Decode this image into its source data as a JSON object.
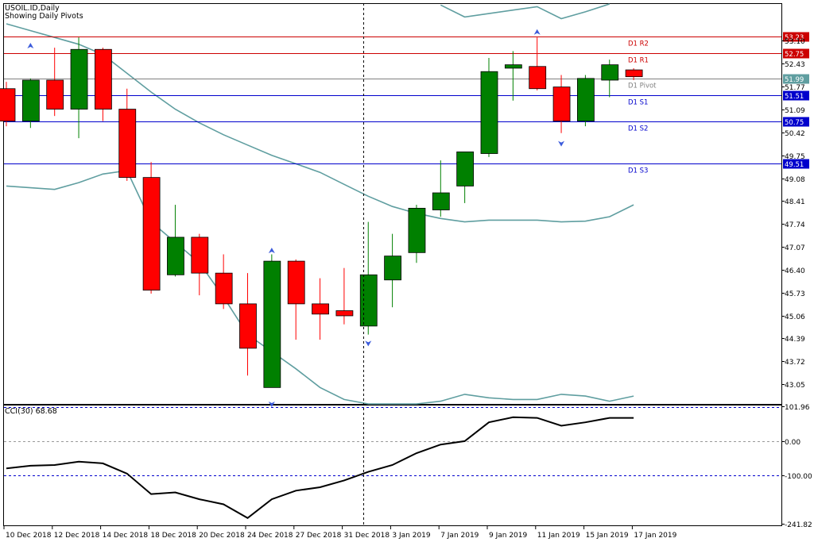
{
  "header": {
    "symbol": "USOIL.ID,Daily",
    "pivot_note": "Showing Daily Pivots"
  },
  "indicator": {
    "label": "CCI(30) 68.68"
  },
  "colors": {
    "bull": "#008000",
    "bear": "#ff0000",
    "ma": "#5f9ea0",
    "pivot_r": "#cc0000",
    "pivot_s": "#0000cc",
    "pivot_p": "#808080",
    "cci": "#000000",
    "level": "#0000cc"
  },
  "chart_data": {
    "type": "candlestick",
    "y_axis_ticks": [
      "53.10",
      "52.43",
      "51.77",
      "51.09",
      "50.42",
      "49.75",
      "49.08",
      "48.41",
      "47.74",
      "47.07",
      "46.40",
      "45.73",
      "45.06",
      "44.39",
      "43.72",
      "43.05"
    ],
    "ylim": [
      42.47,
      54.18
    ],
    "x_axis_ticks": [
      "10 Dec 2018",
      "12 Dec 2018",
      "14 Dec 2018",
      "18 Dec 2018",
      "20 Dec 2018",
      "24 Dec 2018",
      "27 Dec 2018",
      "31 Dec 2018",
      "3 Jan 2019",
      "7 Jan 2019",
      "9 Jan 2019",
      "11 Jan 2019",
      "15 Jan 2019",
      "17 Jan 2019"
    ],
    "candles": [
      {
        "o": 51.7,
        "h": 51.9,
        "l": 50.6,
        "c": 50.75
      },
      {
        "o": 50.75,
        "h": 52.0,
        "l": 50.55,
        "c": 51.95
      },
      {
        "o": 51.95,
        "h": 52.9,
        "l": 50.9,
        "c": 51.1
      },
      {
        "o": 51.1,
        "h": 53.2,
        "l": 50.25,
        "c": 52.85
      },
      {
        "o": 52.85,
        "h": 52.9,
        "l": 50.75,
        "c": 51.1
      },
      {
        "o": 51.1,
        "h": 51.7,
        "l": 49.0,
        "c": 49.1
      },
      {
        "o": 49.1,
        "h": 49.55,
        "l": 45.7,
        "c": 45.8
      },
      {
        "o": 46.25,
        "h": 48.3,
        "l": 46.2,
        "c": 47.35
      },
      {
        "o": 47.35,
        "h": 47.45,
        "l": 45.65,
        "c": 46.3
      },
      {
        "o": 46.3,
        "h": 46.85,
        "l": 45.25,
        "c": 45.4
      },
      {
        "o": 45.4,
        "h": 46.3,
        "l": 43.3,
        "c": 44.1
      },
      {
        "o": 42.95,
        "h": 46.85,
        "l": 42.95,
        "c": 46.65
      },
      {
        "o": 46.65,
        "h": 46.7,
        "l": 44.35,
        "c": 45.4
      },
      {
        "o": 45.4,
        "h": 46.15,
        "l": 44.35,
        "c": 45.1
      },
      {
        "o": 45.2,
        "h": 46.45,
        "l": 44.8,
        "c": 45.05
      },
      {
        "o": 44.75,
        "h": 47.8,
        "l": 44.5,
        "c": 46.25
      },
      {
        "o": 46.1,
        "h": 47.45,
        "l": 45.3,
        "c": 46.8
      },
      {
        "o": 46.9,
        "h": 48.3,
        "l": 46.6,
        "c": 48.2
      },
      {
        "o": 48.15,
        "h": 49.6,
        "l": 47.95,
        "c": 48.65
      },
      {
        "o": 48.85,
        "h": 49.85,
        "l": 48.35,
        "c": 49.85
      },
      {
        "o": 49.8,
        "h": 52.6,
        "l": 49.7,
        "c": 52.2
      },
      {
        "o": 52.3,
        "h": 52.8,
        "l": 51.35,
        "c": 52.4
      },
      {
        "o": 52.35,
        "h": 53.2,
        "l": 51.65,
        "c": 51.7
      },
      {
        "o": 51.75,
        "h": 52.1,
        "l": 50.4,
        "c": 50.75
      },
      {
        "o": 50.75,
        "h": 52.1,
        "l": 50.6,
        "c": 52.0
      },
      {
        "o": 51.95,
        "h": 52.55,
        "l": 51.45,
        "c": 52.4
      },
      {
        "o": 52.25,
        "h": 52.3,
        "l": 51.95,
        "c": 52.05
      }
    ],
    "envelope_upper": [
      {
        "i": 18,
        "v": 54.15
      },
      {
        "i": 19,
        "v": 53.8
      },
      {
        "i": 20,
        "v": 53.9
      },
      {
        "i": 21,
        "v": 54.0
      },
      {
        "i": 22,
        "v": 54.1
      },
      {
        "i": 23,
        "v": 53.75
      },
      {
        "i": 24,
        "v": 53.95
      },
      {
        "i": 25,
        "v": 54.3
      }
    ],
    "envelope_middle": [
      {
        "i": 0,
        "v": 53.6
      },
      {
        "i": 1,
        "v": 53.4
      },
      {
        "i": 2,
        "v": 53.2
      },
      {
        "i": 3,
        "v": 53.0
      },
      {
        "i": 4,
        "v": 52.7
      },
      {
        "i": 5,
        "v": 52.15
      },
      {
        "i": 6,
        "v": 51.6
      },
      {
        "i": 7,
        "v": 51.1
      },
      {
        "i": 8,
        "v": 50.7
      },
      {
        "i": 9,
        "v": 50.35
      },
      {
        "i": 10,
        "v": 50.05
      },
      {
        "i": 11,
        "v": 49.75
      },
      {
        "i": 12,
        "v": 49.5
      },
      {
        "i": 13,
        "v": 49.25
      },
      {
        "i": 14,
        "v": 48.9
      },
      {
        "i": 15,
        "v": 48.55
      },
      {
        "i": 16,
        "v": 48.25
      },
      {
        "i": 17,
        "v": 48.05
      },
      {
        "i": 18,
        "v": 47.9
      },
      {
        "i": 19,
        "v": 47.8
      },
      {
        "i": 20,
        "v": 47.85
      },
      {
        "i": 21,
        "v": 47.85
      },
      {
        "i": 22,
        "v": 47.85
      },
      {
        "i": 23,
        "v": 47.8
      },
      {
        "i": 24,
        "v": 47.82
      },
      {
        "i": 25,
        "v": 47.95
      },
      {
        "i": 26,
        "v": 48.3
      }
    ],
    "envelope_lower": [
      {
        "i": 0,
        "v": 48.85
      },
      {
        "i": 1,
        "v": 48.8
      },
      {
        "i": 2,
        "v": 48.75
      },
      {
        "i": 3,
        "v": 48.95
      },
      {
        "i": 4,
        "v": 49.2
      },
      {
        "i": 5,
        "v": 49.3
      },
      {
        "i": 6,
        "v": 47.8
      },
      {
        "i": 7,
        "v": 47.2
      },
      {
        "i": 8,
        "v": 46.6
      },
      {
        "i": 9,
        "v": 45.6
      },
      {
        "i": 10,
        "v": 44.5
      },
      {
        "i": 11,
        "v": 44.0
      },
      {
        "i": 12,
        "v": 43.5
      },
      {
        "i": 13,
        "v": 42.95
      },
      {
        "i": 14,
        "v": 42.6
      },
      {
        "i": 15,
        "v": 42.45
      },
      {
        "i": 16,
        "v": 42.45
      },
      {
        "i": 17,
        "v": 42.45
      },
      {
        "i": 18,
        "v": 42.55
      },
      {
        "i": 19,
        "v": 42.75
      },
      {
        "i": 20,
        "v": 42.65
      },
      {
        "i": 21,
        "v": 42.6
      },
      {
        "i": 22,
        "v": 42.6
      },
      {
        "i": 23,
        "v": 42.75
      },
      {
        "i": 24,
        "v": 42.7
      },
      {
        "i": 25,
        "v": 42.55
      },
      {
        "i": 26,
        "v": 42.7
      }
    ],
    "pivots": [
      {
        "name": "D1 R2",
        "value": "53.23",
        "kind": "r"
      },
      {
        "name": "D1 R1",
        "value": "52.75",
        "kind": "r"
      },
      {
        "name": "D1 Pivot",
        "value": "51.99",
        "kind": "p"
      },
      {
        "name": "D1 S1",
        "value": "51.51",
        "kind": "s"
      },
      {
        "name": "D1 S2",
        "value": "50.75",
        "kind": "s"
      },
      {
        "name": "D1 S3",
        "value": "49.51",
        "kind": "s"
      }
    ],
    "current_price": "51.99",
    "fractals_up": [
      {
        "i": 11,
        "v": 46.95
      },
      {
        "i": 22,
        "v": 53.35
      },
      {
        "i": 1,
        "v": 52.95
      }
    ],
    "fractals_down": [
      {
        "i": 15,
        "v": 44.25
      },
      {
        "i": 23,
        "v": 50.1
      },
      {
        "i": 11,
        "v": 42.35
      }
    ],
    "cci": {
      "label": "CCI(30) 68.68",
      "y_ticks": [
        "101.96",
        "0.00",
        "-100.00",
        "-241.82"
      ],
      "ylim": [
        -241.82,
        101.96
      ],
      "levels": [
        100,
        0,
        -100
      ],
      "values": [
        -80,
        -72,
        -70,
        -60,
        -65,
        -95,
        -155,
        -150,
        -170,
        -185,
        -225,
        -170,
        -145,
        -135,
        -115,
        -90,
        -70,
        -35,
        -10,
        0,
        55,
        70,
        68,
        45,
        55,
        68,
        68
      ]
    }
  }
}
